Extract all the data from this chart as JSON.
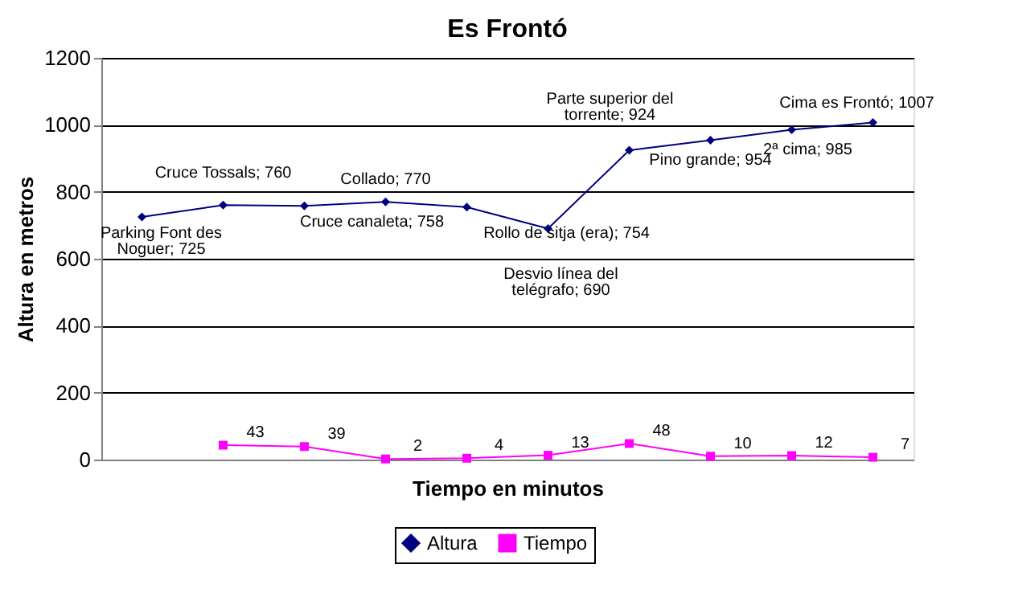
{
  "chart_data": {
    "type": "line",
    "title": "Es Frontó",
    "xlabel": "Tiempo en minutos",
    "ylabel": "Altura en metros",
    "categories": [
      null,
      null,
      null,
      null,
      null,
      null,
      null,
      null,
      null,
      null
    ],
    "series": [
      {
        "name": "Altura",
        "color": "#000080",
        "marker": "diamond",
        "values": [
          725,
          760,
          758,
          770,
          754,
          690,
          924,
          954,
          985,
          1007
        ],
        "value_labels": [
          "Parking Font des\nNoguer; 725",
          "Cruce  Tossals; 760",
          "Cruce canaleta; 758",
          "Collado; 770",
          "Rollo de sitja (era); 754",
          "Desvio línea del\ntelégrafo; 690",
          "Parte superior del\ntorrente; 924",
          "Pino grande; 954",
          "2ª cima; 985",
          "Cima es Frontó; 1007"
        ]
      },
      {
        "name": "Tiempo",
        "color": "#ff00ff",
        "marker": "square",
        "data_labels": true,
        "values": [
          null,
          43,
          39,
          2,
          4,
          13,
          48,
          10,
          12,
          7
        ]
      }
    ],
    "ylim": [
      0,
      1200
    ],
    "yticks": [
      0,
      200,
      400,
      600,
      800,
      1000,
      1200
    ],
    "grid": "y",
    "legend": "bottom",
    "tick_labels": "y",
    "line_style": "solid"
  }
}
